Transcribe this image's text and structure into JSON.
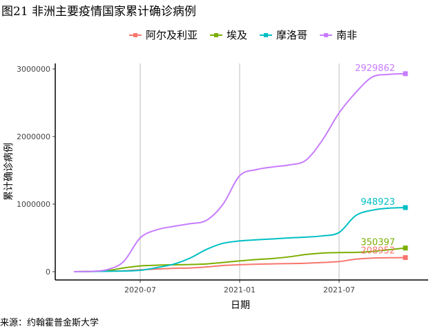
{
  "title": "图21 非洲主要疫情国家累计确诊病例",
  "source": "来源：约翰霍普金斯大学",
  "chart_data": {
    "type": "line",
    "xlabel": "日期",
    "ylabel": "累计确诊病例",
    "x_ticks": [
      "2020-07",
      "2021-01",
      "2021-07"
    ],
    "y_ticks": [
      "0",
      "1000000",
      "2000000",
      "3000000"
    ],
    "ylim": [
      0,
      3000000
    ],
    "x_range": [
      "2020-03",
      "2021-11"
    ],
    "grid": "vertical",
    "legend_position": "top",
    "x": [
      "2020-03",
      "2020-04",
      "2020-05",
      "2020-06",
      "2020-07",
      "2020-08",
      "2020-09",
      "2020-10",
      "2020-11",
      "2020-12",
      "2021-01",
      "2021-02",
      "2021-03",
      "2021-04",
      "2021-05",
      "2021-06",
      "2021-07",
      "2021-08",
      "2021-09",
      "2021-10",
      "2021-11"
    ],
    "series": [
      {
        "name": "阿尔及利亚",
        "color": "#F8766D",
        "end_label": "208952",
        "values": [
          0,
          4000,
          9000,
          13000,
          28000,
          40000,
          50000,
          55000,
          70000,
          92000,
          103000,
          111000,
          116000,
          120000,
          125000,
          136000,
          150000,
          185000,
          202000,
          206000,
          208952
        ]
      },
      {
        "name": "埃及",
        "color": "#7CAE00",
        "end_label": "350397",
        "values": [
          0,
          4000,
          15000,
          55000,
          85000,
          96000,
          102000,
          106000,
          115000,
          137000,
          160000,
          180000,
          195000,
          220000,
          255000,
          276000,
          283000,
          286000,
          300000,
          325000,
          350397
        ]
      },
      {
        "name": "摩洛哥",
        "color": "#00BFC4",
        "end_label": "948923",
        "values": [
          0,
          3000,
          7000,
          10000,
          20000,
          60000,
          110000,
          200000,
          330000,
          420000,
          455000,
          472000,
          485000,
          500000,
          512000,
          530000,
          580000,
          830000,
          910000,
          940000,
          948923
        ]
      },
      {
        "name": "南非",
        "color": "#C77CFF",
        "end_label": "2929862",
        "values": [
          0,
          5000,
          30000,
          150000,
          500000,
          620000,
          670000,
          710000,
          760000,
          1000000,
          1420000,
          1510000,
          1550000,
          1580000,
          1650000,
          1950000,
          2350000,
          2650000,
          2880000,
          2920000,
          2929862
        ]
      }
    ]
  }
}
